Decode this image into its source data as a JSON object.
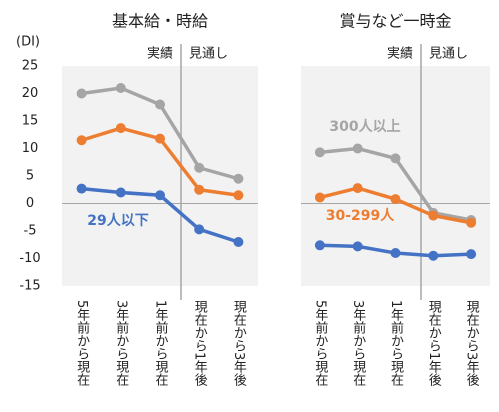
{
  "chart_data": [
    {
      "type": "line",
      "title": "基本給・時給",
      "y_label": "(DI)",
      "annotations": [
        "実績",
        "見通し"
      ],
      "categories": [
        "5年前から現在",
        "3年前から現在",
        "1年前から現在",
        "現在から1年後",
        "現在から3年後"
      ],
      "ylim": [
        -15,
        25
      ],
      "yticks": [
        25,
        20,
        15,
        10,
        5,
        0,
        -5,
        -10,
        -15
      ],
      "series": [
        {
          "color": "#a5a5a5",
          "values": [
            20,
            21,
            18,
            6.5,
            4.5
          ]
        },
        {
          "color": "#ed7d31",
          "values": [
            11.5,
            13.7,
            11.8,
            2.5,
            1.5
          ]
        },
        {
          "name": "29人以下",
          "color": "#4472c4",
          "values": [
            2.7,
            2,
            1.5,
            -4.7,
            -7
          ]
        }
      ]
    },
    {
      "type": "line",
      "title": "賞与など一時金",
      "annotations": [
        "実績",
        "見通し"
      ],
      "categories": [
        "5年前から現在",
        "3年前から現在",
        "1年前から現在",
        "現在から1年後",
        "現在から3年後"
      ],
      "ylim": [
        -15,
        25
      ],
      "series": [
        {
          "name": "300人以上",
          "color": "#a5a5a5",
          "values": [
            9.3,
            10,
            8.2,
            -1.7,
            -3
          ]
        },
        {
          "name": "30-299人",
          "color": "#ed7d31",
          "values": [
            1.1,
            2.8,
            0.8,
            -2.2,
            -3.5
          ]
        },
        {
          "color": "#4472c4",
          "values": [
            -7.6,
            -7.8,
            -9,
            -9.5,
            -9.2
          ]
        }
      ]
    }
  ]
}
